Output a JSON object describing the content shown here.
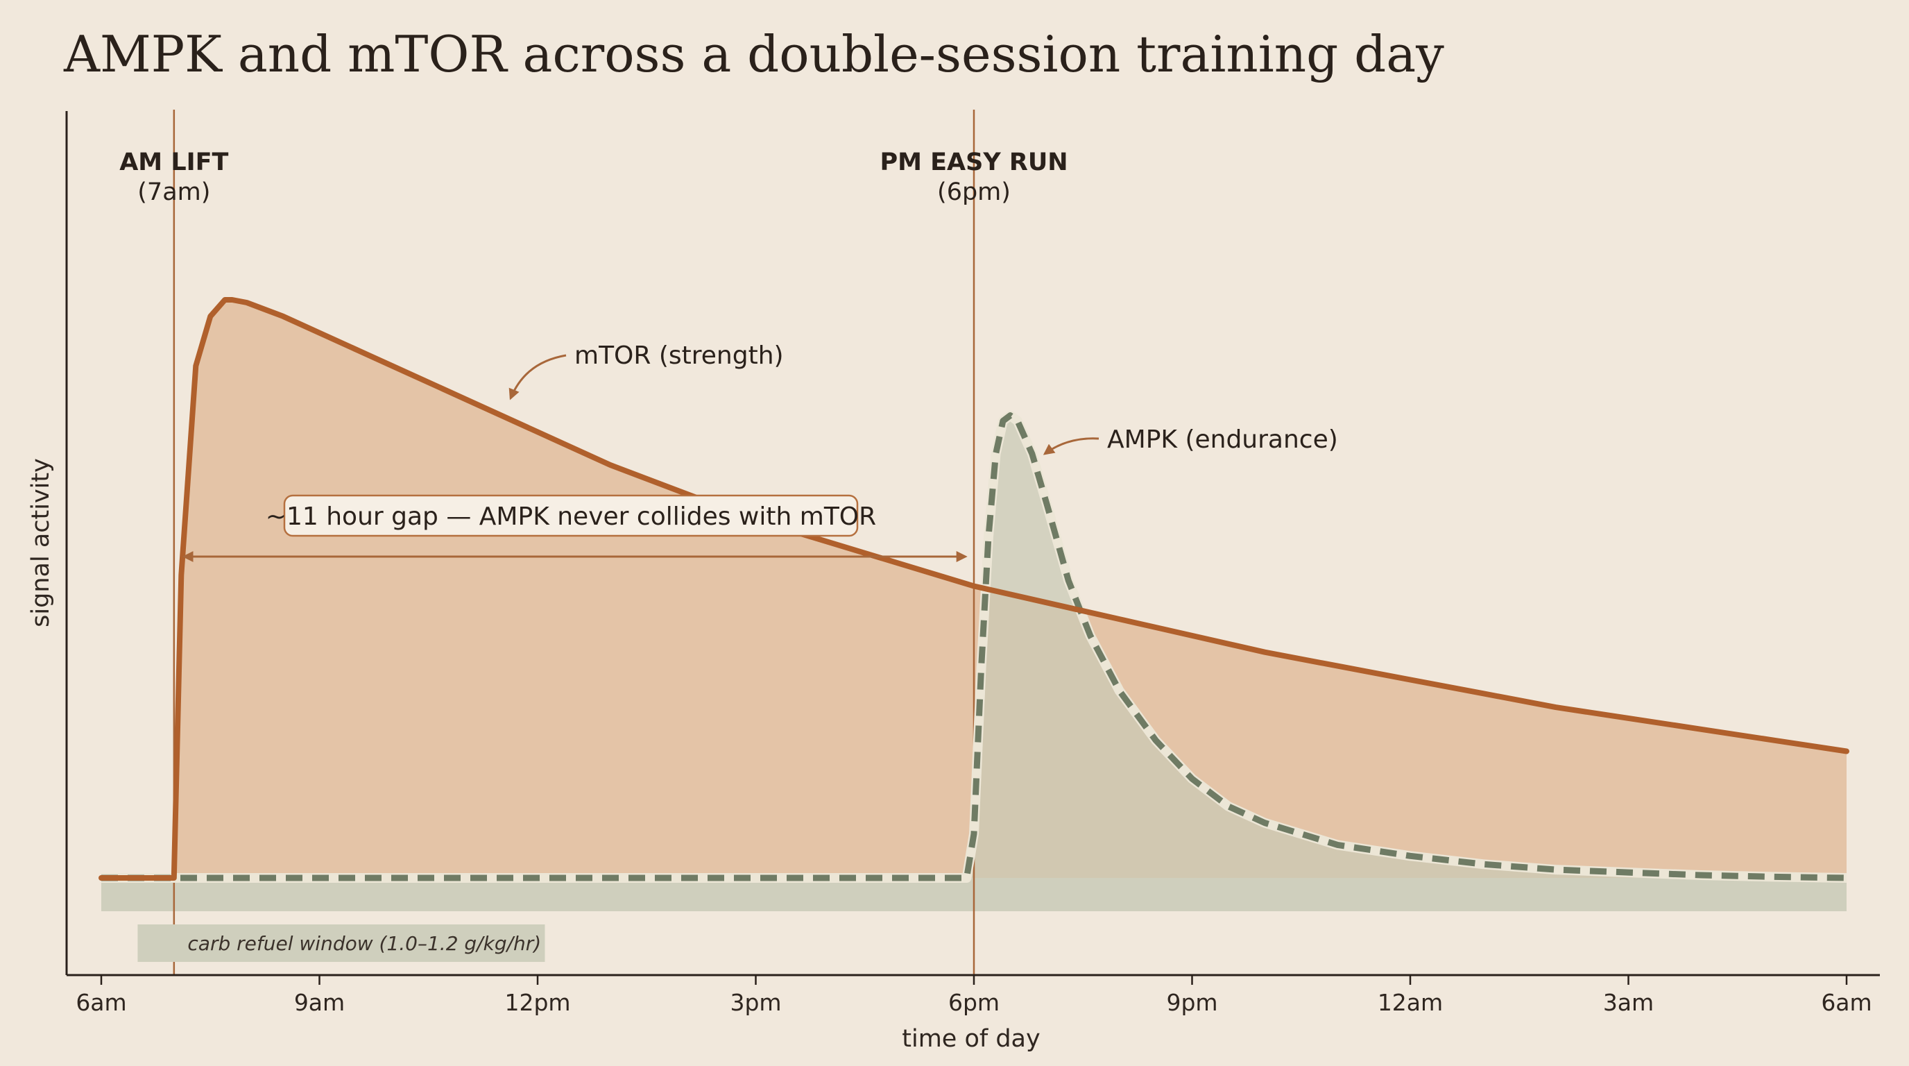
{
  "chart_data": {
    "type": "area",
    "title": "AMPK and mTOR across a double-session training day",
    "xlabel": "time of day",
    "ylabel": "signal activity",
    "x_ticks": [
      "6am",
      "9am",
      "12pm",
      "3pm",
      "6pm",
      "9pm",
      "12am",
      "3am",
      "6am"
    ],
    "x_tick_hours": [
      6,
      9,
      12,
      15,
      18,
      21,
      24,
      27,
      30
    ],
    "xlim": [
      6,
      30
    ],
    "ylim": [
      0,
      1.15
    ],
    "grid": false,
    "series": [
      {
        "name": "mTOR",
        "label": "mTOR  (strength)",
        "style": "solid",
        "color": "#b0602c",
        "fill": "#e4c4a7",
        "x": [
          6,
          7,
          7.1,
          7.3,
          7.5,
          7.7,
          7.8,
          8.0,
          8.5,
          9,
          10,
          11,
          12,
          13,
          14,
          15,
          16,
          17,
          18,
          19,
          20,
          21,
          22,
          23,
          24,
          25,
          26,
          27,
          28,
          29,
          30
        ],
        "y": [
          0.0,
          0.0,
          0.55,
          0.93,
          1.02,
          1.05,
          1.05,
          1.045,
          1.02,
          0.99,
          0.93,
          0.87,
          0.81,
          0.75,
          0.7,
          0.65,
          0.61,
          0.57,
          0.53,
          0.5,
          0.47,
          0.44,
          0.41,
          0.385,
          0.36,
          0.335,
          0.31,
          0.29,
          0.27,
          0.25,
          0.23
        ]
      },
      {
        "name": "AMPK",
        "label": "AMPK  (endurance)",
        "style": "dashed",
        "color": "#6f7b64",
        "fill": "#c9c9b5",
        "x": [
          6,
          17.9,
          18,
          18.1,
          18.2,
          18.3,
          18.4,
          18.5,
          18.6,
          18.8,
          19.0,
          19.3,
          19.6,
          20,
          20.5,
          21,
          21.5,
          22,
          23,
          24,
          25,
          26,
          27,
          28,
          29,
          30
        ],
        "y": [
          0.0,
          0.0,
          0.08,
          0.38,
          0.62,
          0.77,
          0.83,
          0.84,
          0.83,
          0.77,
          0.68,
          0.54,
          0.44,
          0.34,
          0.25,
          0.18,
          0.13,
          0.1,
          0.06,
          0.04,
          0.025,
          0.015,
          0.01,
          0.005,
          0.002,
          0.0
        ]
      }
    ],
    "sessions": [
      {
        "name": "AM LIFT",
        "time": "(7am)",
        "hour": 7
      },
      {
        "name": "PM EASY RUN",
        "time": "(6pm)",
        "hour": 18
      }
    ],
    "annotations": {
      "gap": {
        "text": "~11 hour gap — AMPK never collides with mTOR",
        "from_hour": 7.1,
        "to_hour": 18
      },
      "refuel": {
        "text": "carb refuel window  (1.0–1.2 g/kg/hr)",
        "from_hour": 6.5,
        "to_hour": 12.1
      }
    },
    "colors": {
      "background": "#f1e8dc",
      "mtor_line": "#b0602c",
      "mtor_fill": "#e4c4a7",
      "ampk_line": "#6f7b64",
      "ampk_fill": "#c9c9b5",
      "session_line": "#a8673a",
      "axis": "#2a211b",
      "refuel_band": "#cfcfbd"
    }
  }
}
